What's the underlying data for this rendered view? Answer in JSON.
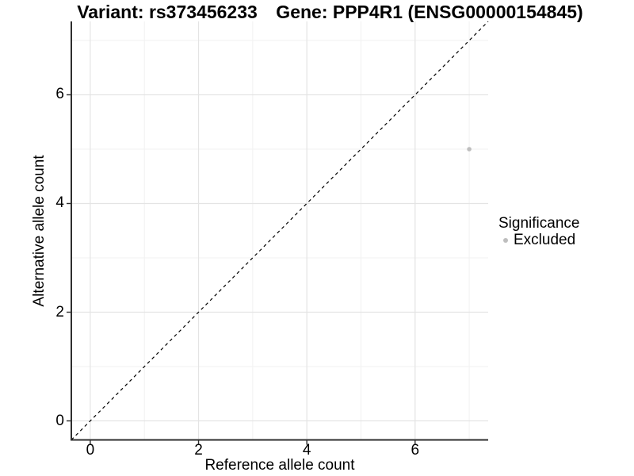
{
  "title": {
    "variant": "Variant: rs373456233",
    "gene": "Gene: PPP4R1 (ENSG00000154845)"
  },
  "x_axis": {
    "label": "Reference allele count"
  },
  "y_axis": {
    "label": "Alternative allele count"
  },
  "legend": {
    "title": "Significance",
    "items": [
      {
        "label": "Excluded",
        "color": "#bebebe"
      }
    ]
  },
  "colors": {
    "background": "#ffffff",
    "point": "#bebebe",
    "grid_major": "#e4e4e4",
    "grid_minor": "#f1f1f1",
    "axis_line": "#2e2e2e",
    "tick_mark": "#2e2e2e",
    "reference_line": "#000000",
    "text": "#000000"
  },
  "chart_data": {
    "type": "scatter",
    "title": "Variant: rs373456233   Gene: PPP4R1 (ENSG00000154845)",
    "xlabel": "Reference allele count",
    "ylabel": "Alternative allele count",
    "xlim": [
      -0.35,
      7.35
    ],
    "ylim": [
      -0.35,
      7.35
    ],
    "x_ticks": [
      0,
      2,
      4,
      6
    ],
    "y_ticks": [
      0,
      2,
      4,
      6
    ],
    "x_minor_ticks": [
      1,
      3,
      5,
      7
    ],
    "y_minor_ticks": [
      1,
      3,
      5,
      7
    ],
    "grid": true,
    "legend_title": "Significance",
    "legend_position": "right",
    "series": [
      {
        "name": "Excluded",
        "color": "#bebebe",
        "marker": "circle",
        "marker_radius": 2.8,
        "points": [
          [
            7,
            5
          ]
        ]
      }
    ],
    "reference_line": {
      "slope": 1,
      "intercept": 0,
      "style": "dashed",
      "color": "#000000"
    }
  }
}
